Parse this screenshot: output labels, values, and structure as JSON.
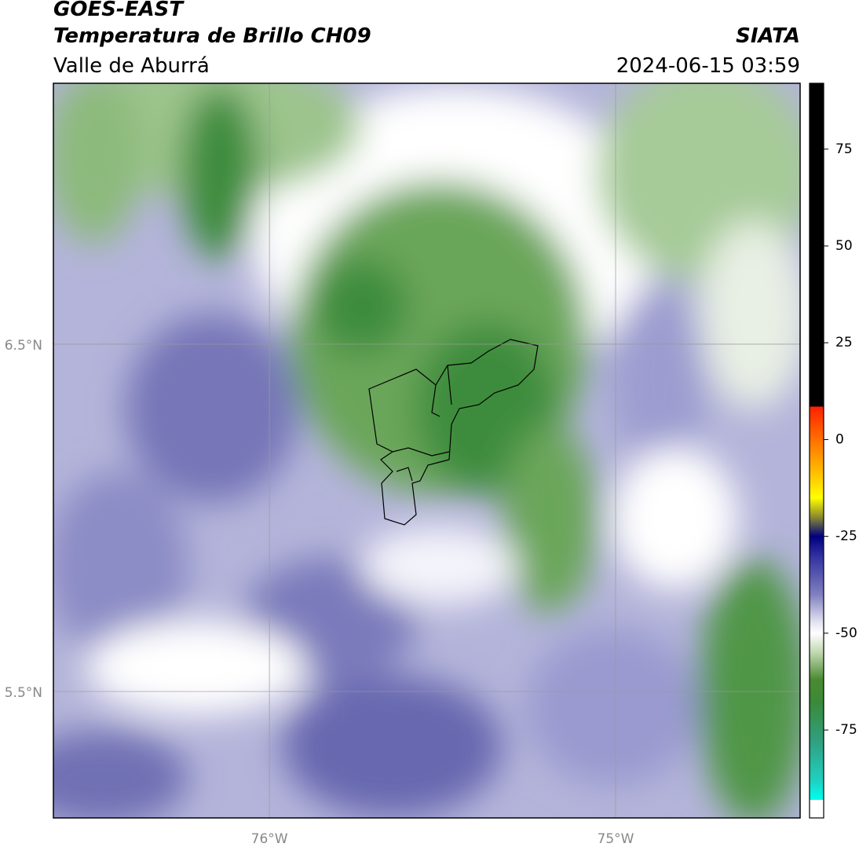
{
  "header": {
    "title": "GOES-EAST",
    "subtitle": "Temperatura de Brillo CH09",
    "source": "SIATA",
    "region": "Valle de Aburrá",
    "datetime": "2024-06-15 03:59"
  },
  "map": {
    "xlim": [
      -76.624,
      -74.467
    ],
    "ylim": [
      5.136,
      7.251
    ],
    "xticks": [
      {
        "value": -76,
        "label": "76°W"
      },
      {
        "value": -75,
        "label": "75°W"
      }
    ],
    "yticks": [
      {
        "value": 6.5,
        "label": "6.5°N"
      },
      {
        "value": 5.5,
        "label": "5.5°N"
      }
    ],
    "grid": true
  },
  "colorbar": {
    "lim": [
      -97.7,
      92
    ],
    "ticks": [
      75,
      50,
      25,
      0,
      -25,
      -50,
      -75
    ],
    "stops": [
      {
        "value": 92,
        "color": "#000000"
      },
      {
        "value": 8.5,
        "color": "#000000"
      },
      {
        "value": 8.5,
        "color": "#ff2000"
      },
      {
        "value": 0,
        "color": "#ff7000"
      },
      {
        "value": -10,
        "color": "#ffcc00"
      },
      {
        "value": -15,
        "color": "#ffff00"
      },
      {
        "value": -20,
        "color": "#8a8a30"
      },
      {
        "value": -25,
        "color": "#000080"
      },
      {
        "value": -30,
        "color": "#3030a0"
      },
      {
        "value": -40,
        "color": "#8080c0"
      },
      {
        "value": -47,
        "color": "#e0e0f0"
      },
      {
        "value": -50,
        "color": "#ffffff"
      },
      {
        "value": -55,
        "color": "#c0d8b0"
      },
      {
        "value": -62,
        "color": "#4a8a30"
      },
      {
        "value": -68,
        "color": "#3a8a3a"
      },
      {
        "value": -78,
        "color": "#30a080"
      },
      {
        "value": -88,
        "color": "#20d0c0"
      },
      {
        "value": -93,
        "color": "#00ffee"
      },
      {
        "value": -93,
        "color": "#ffffff"
      },
      {
        "value": -97.7,
        "color": "#ffffff"
      }
    ]
  }
}
